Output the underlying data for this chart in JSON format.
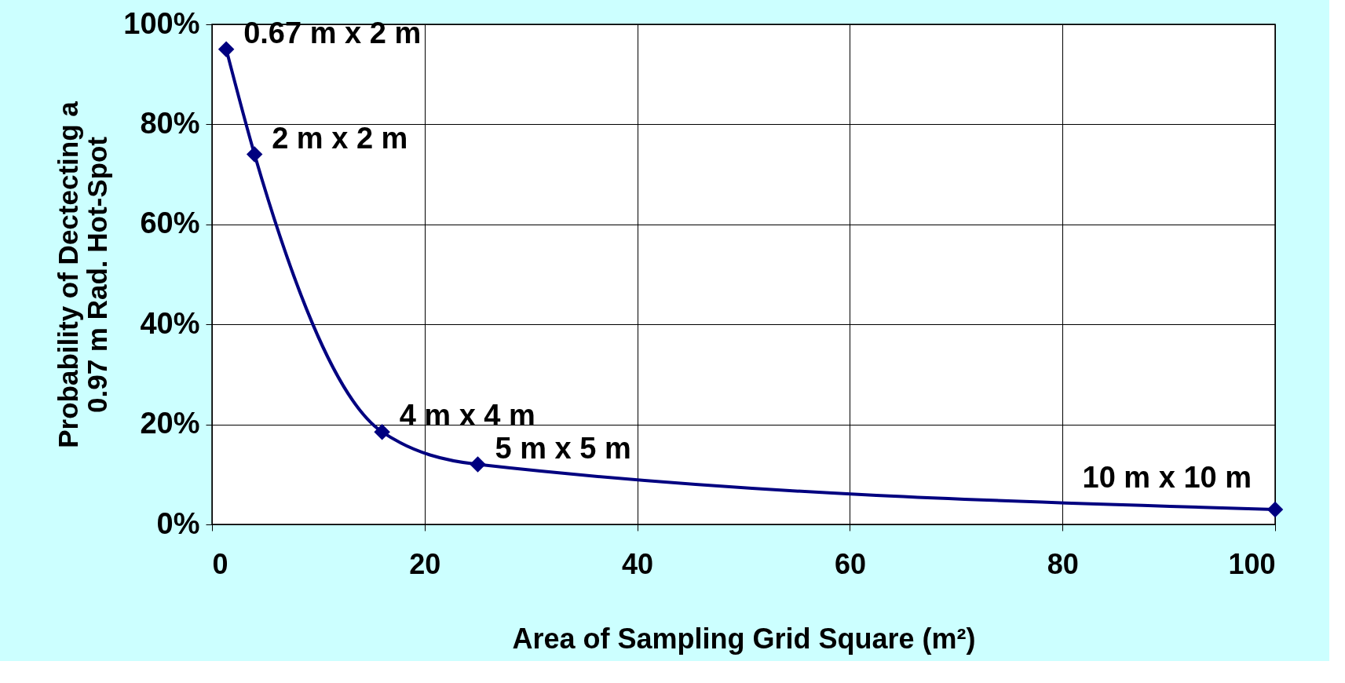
{
  "chart_data": {
    "type": "line",
    "xlabel": "Area of Sampling Grid Square (m²)",
    "ylabel": "Probability of Dectecting a\n0.97 m Rad. Hot-Spot",
    "x": [
      1.34,
      4,
      16,
      25,
      100
    ],
    "series": [
      {
        "color": "#000080",
        "values": [
          95,
          74,
          18.5,
          12,
          3
        ]
      }
    ],
    "xlim": [
      0,
      100
    ],
    "xticks": [
      0,
      20,
      40,
      60,
      80,
      100
    ],
    "ylim": [
      0,
      100
    ],
    "yticks": [
      {
        "value": 0,
        "label": "0%"
      },
      {
        "value": 20,
        "label": "20%"
      },
      {
        "value": 40,
        "label": "40%"
      },
      {
        "value": 60,
        "label": "60%"
      },
      {
        "value": 80,
        "label": "80%"
      },
      {
        "value": 100,
        "label": "100%"
      }
    ],
    "annotations": [
      {
        "text": "0.67 m x 2 m",
        "x": 1.34,
        "y": 95
      },
      {
        "text": "2 m x 2 m",
        "x": 4,
        "y": 74
      },
      {
        "text": "4 m x 4 m",
        "x": 16,
        "y": 18.5
      },
      {
        "text": "5 m x 5 m",
        "x": 25,
        "y": 12
      },
      {
        "text": "10 m x 10 m",
        "x": 100,
        "y": 3
      }
    ],
    "grid": true,
    "marker": "diamond",
    "line_style": "solid"
  }
}
